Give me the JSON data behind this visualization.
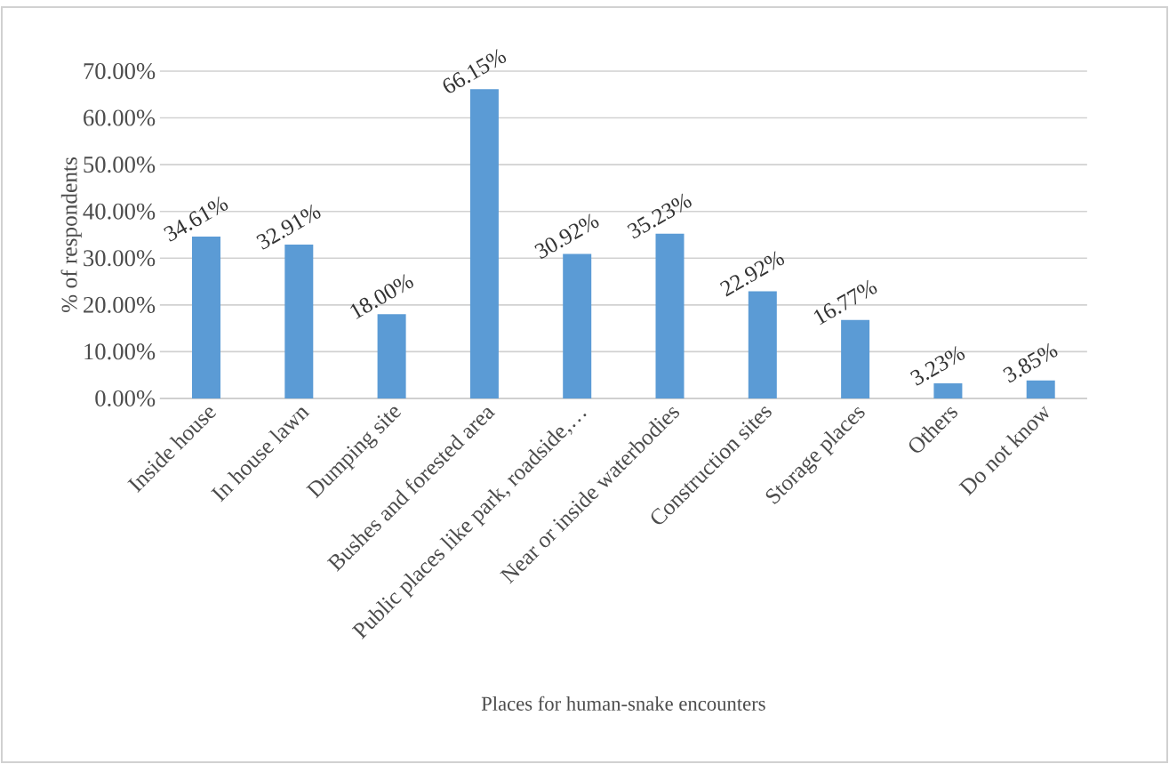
{
  "chart_data": {
    "type": "bar",
    "xlabel": "Places for human-snake encounters",
    "ylabel": "% of respondents",
    "categories": [
      "Inside house",
      "In house lawn",
      "Dumping site",
      "Bushes and forested area",
      "Public places like park, roadside,…",
      "Near or inside waterbodies",
      "Construction sites",
      "Storage places",
      "Others",
      "Do not know"
    ],
    "values": [
      34.61,
      32.91,
      18.0,
      66.15,
      30.92,
      35.23,
      22.92,
      16.77,
      3.23,
      3.85
    ],
    "value_labels": [
      "34.61%",
      "32.91%",
      "18.00%",
      "66.15%",
      "30.92%",
      "35.23%",
      "22.92%",
      "16.77%",
      "3.23%",
      "3.85%"
    ],
    "color": "#5b9bd5",
    "ylim": [
      0,
      70
    ],
    "yticks": [
      {
        "value": 0,
        "label": "0.00%"
      },
      {
        "value": 10,
        "label": "10.00%"
      },
      {
        "value": 20,
        "label": "20.00%"
      },
      {
        "value": 30,
        "label": "30.00%"
      },
      {
        "value": 40,
        "label": "40.00%"
      },
      {
        "value": 50,
        "label": "50.00%"
      },
      {
        "value": 60,
        "label": "60.00%"
      },
      {
        "value": 70,
        "label": "70.00%"
      }
    ],
    "grid": "y"
  }
}
